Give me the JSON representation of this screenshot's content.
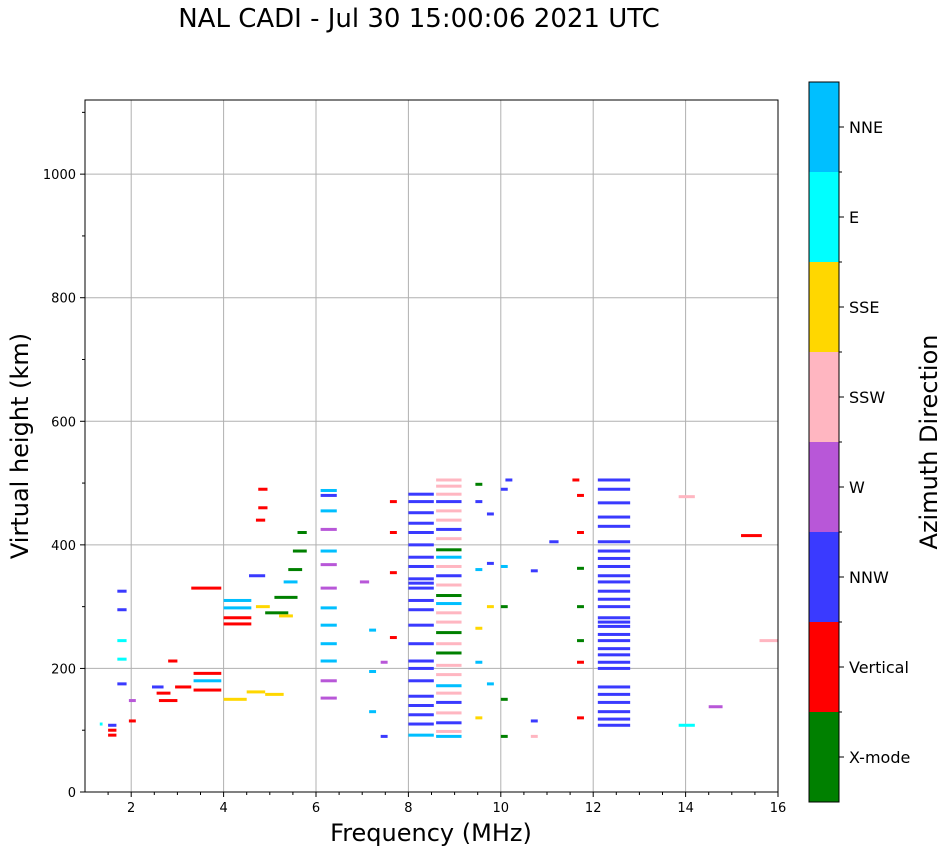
{
  "title": "NAL CADI - Jul 30 15:00:06 2021 UTC",
  "chart_data": {
    "type": "scatter",
    "title": "NAL CADI - Jul 30 15:00:06 2021 UTC",
    "xlabel": "Frequency (MHz)",
    "ylabel": "Virtual height (km)",
    "xlim": [
      1,
      16
    ],
    "ylim": [
      0,
      1120
    ],
    "xticks": [
      2,
      4,
      6,
      8,
      10,
      12,
      14,
      16
    ],
    "yticks": [
      0,
      200,
      400,
      600,
      800,
      1000
    ],
    "grid": true,
    "colorbar": {
      "label": "Azimuth Direction",
      "categories": [
        {
          "name": "X-mode",
          "color": "#008000"
        },
        {
          "name": "Vertical",
          "color": "#ff0000"
        },
        {
          "name": "NNW",
          "color": "#3a3aff"
        },
        {
          "name": "W",
          "color": "#b857d8"
        },
        {
          "name": "SSW",
          "color": "#ffb6c1"
        },
        {
          "name": "SSE",
          "color": "#ffd700"
        },
        {
          "name": "E",
          "color": "#00ffff"
        },
        {
          "name": "NNE",
          "color": "#00bfff"
        }
      ]
    },
    "segments": [
      {
        "f0": 1.32,
        "f1": 1.38,
        "h": 110,
        "c": "E"
      },
      {
        "f0": 1.5,
        "f1": 1.68,
        "h": 92,
        "c": "Vertical"
      },
      {
        "f0": 1.5,
        "f1": 1.68,
        "h": 100,
        "c": "Vertical"
      },
      {
        "f0": 1.5,
        "f1": 1.68,
        "h": 108,
        "c": "NNW"
      },
      {
        "f0": 1.7,
        "f1": 1.9,
        "h": 175,
        "c": "NNW"
      },
      {
        "f0": 1.7,
        "f1": 1.9,
        "h": 215,
        "c": "E"
      },
      {
        "f0": 1.7,
        "f1": 1.9,
        "h": 245,
        "c": "E"
      },
      {
        "f0": 1.7,
        "f1": 1.9,
        "h": 295,
        "c": "NNW"
      },
      {
        "f0": 1.7,
        "f1": 1.9,
        "h": 325,
        "c": "NNW"
      },
      {
        "f0": 1.95,
        "f1": 2.1,
        "h": 115,
        "c": "Vertical"
      },
      {
        "f0": 1.95,
        "f1": 2.1,
        "h": 148,
        "c": "W"
      },
      {
        "f0": 2.45,
        "f1": 2.7,
        "h": 170,
        "c": "NNW"
      },
      {
        "f0": 2.55,
        "f1": 2.85,
        "h": 160,
        "c": "Vertical"
      },
      {
        "f0": 2.6,
        "f1": 3.0,
        "h": 148,
        "c": "Vertical"
      },
      {
        "f0": 2.8,
        "f1": 3.0,
        "h": 212,
        "c": "Vertical"
      },
      {
        "f0": 2.95,
        "f1": 3.3,
        "h": 170,
        "c": "Vertical"
      },
      {
        "f0": 3.35,
        "f1": 3.95,
        "h": 165,
        "c": "Vertical"
      },
      {
        "f0": 3.35,
        "f1": 3.95,
        "h": 180,
        "c": "NNE"
      },
      {
        "f0": 3.35,
        "f1": 3.95,
        "h": 192,
        "c": "Vertical"
      },
      {
        "f0": 3.3,
        "f1": 3.95,
        "h": 330,
        "c": "Vertical"
      },
      {
        "f0": 4.0,
        "f1": 4.5,
        "h": 150,
        "c": "SSE"
      },
      {
        "f0": 4.5,
        "f1": 4.9,
        "h": 162,
        "c": "SSE"
      },
      {
        "f0": 4.9,
        "f1": 5.3,
        "h": 158,
        "c": "SSE"
      },
      {
        "f0": 4.0,
        "f1": 4.6,
        "h": 272,
        "c": "Vertical"
      },
      {
        "f0": 4.0,
        "f1": 4.6,
        "h": 282,
        "c": "Vertical"
      },
      {
        "f0": 4.0,
        "f1": 4.6,
        "h": 298,
        "c": "NNE"
      },
      {
        "f0": 4.0,
        "f1": 4.6,
        "h": 310,
        "c": "NNE"
      },
      {
        "f0": 4.55,
        "f1": 4.9,
        "h": 350,
        "c": "NNW"
      },
      {
        "f0": 4.7,
        "f1": 5.0,
        "h": 300,
        "c": "SSE"
      },
      {
        "f0": 4.9,
        "f1": 5.4,
        "h": 290,
        "c": "X-mode"
      },
      {
        "f0": 5.1,
        "f1": 5.6,
        "h": 315,
        "c": "X-mode"
      },
      {
        "f0": 5.2,
        "f1": 5.5,
        "h": 285,
        "c": "SSE"
      },
      {
        "f0": 5.3,
        "f1": 5.6,
        "h": 340,
        "c": "NNE"
      },
      {
        "f0": 5.4,
        "f1": 5.7,
        "h": 360,
        "c": "X-mode"
      },
      {
        "f0": 5.5,
        "f1": 5.8,
        "h": 390,
        "c": "X-mode"
      },
      {
        "f0": 5.6,
        "f1": 5.8,
        "h": 420,
        "c": "X-mode"
      },
      {
        "f0": 4.75,
        "f1": 4.95,
        "h": 490,
        "c": "Vertical"
      },
      {
        "f0": 4.7,
        "f1": 4.9,
        "h": 440,
        "c": "Vertical"
      },
      {
        "f0": 4.75,
        "f1": 4.95,
        "h": 460,
        "c": "Vertical"
      },
      {
        "f0": 6.1,
        "f1": 6.45,
        "h": 488,
        "c": "NNE"
      },
      {
        "f0": 6.1,
        "f1": 6.45,
        "h": 480,
        "c": "NNW"
      },
      {
        "f0": 6.1,
        "f1": 6.45,
        "h": 455,
        "c": "NNE"
      },
      {
        "f0": 6.1,
        "f1": 6.45,
        "h": 425,
        "c": "W"
      },
      {
        "f0": 6.1,
        "f1": 6.45,
        "h": 390,
        "c": "NNE"
      },
      {
        "f0": 6.1,
        "f1": 6.45,
        "h": 368,
        "c": "W"
      },
      {
        "f0": 6.1,
        "f1": 6.45,
        "h": 330,
        "c": "W"
      },
      {
        "f0": 6.1,
        "f1": 6.45,
        "h": 298,
        "c": "NNE"
      },
      {
        "f0": 6.1,
        "f1": 6.45,
        "h": 270,
        "c": "NNE"
      },
      {
        "f0": 6.1,
        "f1": 6.45,
        "h": 240,
        "c": "NNE"
      },
      {
        "f0": 6.1,
        "f1": 6.45,
        "h": 212,
        "c": "NNE"
      },
      {
        "f0": 6.1,
        "f1": 6.45,
        "h": 180,
        "c": "W"
      },
      {
        "f0": 6.1,
        "f1": 6.45,
        "h": 152,
        "c": "W"
      },
      {
        "f0": 6.95,
        "f1": 7.15,
        "h": 340,
        "c": "W"
      },
      {
        "f0": 7.15,
        "f1": 7.3,
        "h": 262,
        "c": "NNE"
      },
      {
        "f0": 7.15,
        "f1": 7.3,
        "h": 195,
        "c": "NNE"
      },
      {
        "f0": 7.15,
        "f1": 7.3,
        "h": 130,
        "c": "NNE"
      },
      {
        "f0": 7.4,
        "f1": 7.55,
        "h": 210,
        "c": "W"
      },
      {
        "f0": 7.4,
        "f1": 7.55,
        "h": 90,
        "c": "NNW"
      },
      {
        "f0": 7.6,
        "f1": 7.75,
        "h": 470,
        "c": "Vertical"
      },
      {
        "f0": 7.6,
        "f1": 7.75,
        "h": 420,
        "c": "Vertical"
      },
      {
        "f0": 7.6,
        "f1": 7.75,
        "h": 355,
        "c": "Vertical"
      },
      {
        "f0": 7.6,
        "f1": 7.75,
        "h": 250,
        "c": "Vertical"
      },
      {
        "f0": 8.0,
        "f1": 8.55,
        "h": 482,
        "c": "NNW"
      },
      {
        "f0": 8.0,
        "f1": 8.55,
        "h": 470,
        "c": "NNW"
      },
      {
        "f0": 8.0,
        "f1": 8.55,
        "h": 452,
        "c": "NNW"
      },
      {
        "f0": 8.0,
        "f1": 8.55,
        "h": 435,
        "c": "NNW"
      },
      {
        "f0": 8.0,
        "f1": 8.55,
        "h": 420,
        "c": "NNW"
      },
      {
        "f0": 8.0,
        "f1": 8.55,
        "h": 400,
        "c": "NNW"
      },
      {
        "f0": 8.0,
        "f1": 8.55,
        "h": 380,
        "c": "NNW"
      },
      {
        "f0": 8.0,
        "f1": 8.55,
        "h": 365,
        "c": "NNW"
      },
      {
        "f0": 8.0,
        "f1": 8.55,
        "h": 345,
        "c": "NNW"
      },
      {
        "f0": 8.0,
        "f1": 8.55,
        "h": 338,
        "c": "NNW"
      },
      {
        "f0": 8.0,
        "f1": 8.55,
        "h": 330,
        "c": "NNW"
      },
      {
        "f0": 8.0,
        "f1": 8.55,
        "h": 310,
        "c": "NNW"
      },
      {
        "f0": 8.0,
        "f1": 8.55,
        "h": 295,
        "c": "NNW"
      },
      {
        "f0": 8.0,
        "f1": 8.55,
        "h": 270,
        "c": "NNW"
      },
      {
        "f0": 8.0,
        "f1": 8.55,
        "h": 240,
        "c": "NNW"
      },
      {
        "f0": 8.0,
        "f1": 8.55,
        "h": 212,
        "c": "NNW"
      },
      {
        "f0": 8.0,
        "f1": 8.55,
        "h": 200,
        "c": "NNW"
      },
      {
        "f0": 8.0,
        "f1": 8.55,
        "h": 180,
        "c": "NNW"
      },
      {
        "f0": 8.0,
        "f1": 8.55,
        "h": 155,
        "c": "NNW"
      },
      {
        "f0": 8.0,
        "f1": 8.55,
        "h": 140,
        "c": "NNW"
      },
      {
        "f0": 8.0,
        "f1": 8.55,
        "h": 125,
        "c": "NNW"
      },
      {
        "f0": 8.0,
        "f1": 8.55,
        "h": 110,
        "c": "NNW"
      },
      {
        "f0": 8.0,
        "f1": 8.55,
        "h": 92,
        "c": "NNE"
      },
      {
        "f0": 8.6,
        "f1": 9.15,
        "h": 505,
        "c": "SSW"
      },
      {
        "f0": 8.6,
        "f1": 9.15,
        "h": 495,
        "c": "SSW"
      },
      {
        "f0": 8.6,
        "f1": 9.15,
        "h": 482,
        "c": "SSW"
      },
      {
        "f0": 8.6,
        "f1": 9.15,
        "h": 470,
        "c": "NNW"
      },
      {
        "f0": 8.6,
        "f1": 9.15,
        "h": 455,
        "c": "SSW"
      },
      {
        "f0": 8.6,
        "f1": 9.15,
        "h": 440,
        "c": "SSW"
      },
      {
        "f0": 8.6,
        "f1": 9.15,
        "h": 425,
        "c": "NNW"
      },
      {
        "f0": 8.6,
        "f1": 9.15,
        "h": 410,
        "c": "SSW"
      },
      {
        "f0": 8.6,
        "f1": 9.15,
        "h": 392,
        "c": "X-mode"
      },
      {
        "f0": 8.6,
        "f1": 9.15,
        "h": 380,
        "c": "NNE"
      },
      {
        "f0": 8.6,
        "f1": 9.15,
        "h": 365,
        "c": "SSW"
      },
      {
        "f0": 8.6,
        "f1": 9.15,
        "h": 350,
        "c": "NNW"
      },
      {
        "f0": 8.6,
        "f1": 9.15,
        "h": 335,
        "c": "SSW"
      },
      {
        "f0": 8.6,
        "f1": 9.15,
        "h": 318,
        "c": "X-mode"
      },
      {
        "f0": 8.6,
        "f1": 9.15,
        "h": 305,
        "c": "NNE"
      },
      {
        "f0": 8.6,
        "f1": 9.15,
        "h": 290,
        "c": "SSW"
      },
      {
        "f0": 8.6,
        "f1": 9.15,
        "h": 275,
        "c": "SSW"
      },
      {
        "f0": 8.6,
        "f1": 9.15,
        "h": 258,
        "c": "X-mode"
      },
      {
        "f0": 8.6,
        "f1": 9.15,
        "h": 240,
        "c": "SSW"
      },
      {
        "f0": 8.6,
        "f1": 9.15,
        "h": 225,
        "c": "X-mode"
      },
      {
        "f0": 8.6,
        "f1": 9.15,
        "h": 205,
        "c": "SSW"
      },
      {
        "f0": 8.6,
        "f1": 9.15,
        "h": 190,
        "c": "SSW"
      },
      {
        "f0": 8.6,
        "f1": 9.15,
        "h": 172,
        "c": "NNE"
      },
      {
        "f0": 8.6,
        "f1": 9.15,
        "h": 160,
        "c": "SSW"
      },
      {
        "f0": 8.6,
        "f1": 9.15,
        "h": 145,
        "c": "NNW"
      },
      {
        "f0": 8.6,
        "f1": 9.15,
        "h": 128,
        "c": "SSW"
      },
      {
        "f0": 8.6,
        "f1": 9.15,
        "h": 112,
        "c": "NNW"
      },
      {
        "f0": 8.6,
        "f1": 9.15,
        "h": 98,
        "c": "SSW"
      },
      {
        "f0": 8.6,
        "f1": 9.15,
        "h": 90,
        "c": "NNE"
      },
      {
        "f0": 9.45,
        "f1": 9.6,
        "h": 498,
        "c": "X-mode"
      },
      {
        "f0": 9.45,
        "f1": 9.6,
        "h": 470,
        "c": "NNW"
      },
      {
        "f0": 9.45,
        "f1": 9.6,
        "h": 360,
        "c": "NNE"
      },
      {
        "f0": 9.45,
        "f1": 9.6,
        "h": 265,
        "c": "SSE"
      },
      {
        "f0": 9.45,
        "f1": 9.6,
        "h": 210,
        "c": "NNE"
      },
      {
        "f0": 9.45,
        "f1": 9.6,
        "h": 120,
        "c": "SSE"
      },
      {
        "f0": 9.7,
        "f1": 9.85,
        "h": 450,
        "c": "NNW"
      },
      {
        "f0": 9.7,
        "f1": 9.85,
        "h": 370,
        "c": "NNW"
      },
      {
        "f0": 9.7,
        "f1": 9.85,
        "h": 300,
        "c": "SSE"
      },
      {
        "f0": 9.7,
        "f1": 9.85,
        "h": 175,
        "c": "NNE"
      },
      {
        "f0": 10.0,
        "f1": 10.15,
        "h": 490,
        "c": "NNW"
      },
      {
        "f0": 10.0,
        "f1": 10.15,
        "h": 365,
        "c": "NNE"
      },
      {
        "f0": 10.0,
        "f1": 10.15,
        "h": 300,
        "c": "X-mode"
      },
      {
        "f0": 10.0,
        "f1": 10.15,
        "h": 150,
        "c": "X-mode"
      },
      {
        "f0": 10.0,
        "f1": 10.15,
        "h": 90,
        "c": "X-mode"
      },
      {
        "f0": 10.1,
        "f1": 10.25,
        "h": 505,
        "c": "NNW"
      },
      {
        "f0": 10.65,
        "f1": 10.8,
        "h": 358,
        "c": "NNW"
      },
      {
        "f0": 10.65,
        "f1": 10.8,
        "h": 115,
        "c": "NNW"
      },
      {
        "f0": 10.65,
        "f1": 10.8,
        "h": 90,
        "c": "SSW"
      },
      {
        "f0": 11.05,
        "f1": 11.25,
        "h": 405,
        "c": "NNW"
      },
      {
        "f0": 11.55,
        "f1": 11.7,
        "h": 505,
        "c": "Vertical"
      },
      {
        "f0": 11.65,
        "f1": 11.8,
        "h": 480,
        "c": "Vertical"
      },
      {
        "f0": 11.65,
        "f1": 11.8,
        "h": 420,
        "c": "Vertical"
      },
      {
        "f0": 11.65,
        "f1": 11.8,
        "h": 362,
        "c": "X-mode"
      },
      {
        "f0": 11.65,
        "f1": 11.8,
        "h": 300,
        "c": "X-mode"
      },
      {
        "f0": 11.65,
        "f1": 11.8,
        "h": 245,
        "c": "X-mode"
      },
      {
        "f0": 11.65,
        "f1": 11.8,
        "h": 210,
        "c": "Vertical"
      },
      {
        "f0": 11.65,
        "f1": 11.8,
        "h": 120,
        "c": "Vertical"
      },
      {
        "f0": 12.1,
        "f1": 12.8,
        "h": 505,
        "c": "NNW"
      },
      {
        "f0": 12.1,
        "f1": 12.8,
        "h": 490,
        "c": "NNW"
      },
      {
        "f0": 12.1,
        "f1": 12.8,
        "h": 468,
        "c": "NNW"
      },
      {
        "f0": 12.1,
        "f1": 12.8,
        "h": 445,
        "c": "NNW"
      },
      {
        "f0": 12.1,
        "f1": 12.8,
        "h": 430,
        "c": "NNW"
      },
      {
        "f0": 12.1,
        "f1": 12.8,
        "h": 405,
        "c": "NNW"
      },
      {
        "f0": 12.1,
        "f1": 12.8,
        "h": 390,
        "c": "NNW"
      },
      {
        "f0": 12.1,
        "f1": 12.8,
        "h": 378,
        "c": "NNW"
      },
      {
        "f0": 12.1,
        "f1": 12.8,
        "h": 365,
        "c": "NNW"
      },
      {
        "f0": 12.1,
        "f1": 12.8,
        "h": 350,
        "c": "NNW"
      },
      {
        "f0": 12.1,
        "f1": 12.8,
        "h": 340,
        "c": "NNW"
      },
      {
        "f0": 12.1,
        "f1": 12.8,
        "h": 325,
        "c": "NNW"
      },
      {
        "f0": 12.1,
        "f1": 12.8,
        "h": 312,
        "c": "NNW"
      },
      {
        "f0": 12.1,
        "f1": 12.8,
        "h": 300,
        "c": "NNW"
      },
      {
        "f0": 12.1,
        "f1": 12.8,
        "h": 282,
        "c": "NNW"
      },
      {
        "f0": 12.1,
        "f1": 12.8,
        "h": 275,
        "c": "NNW"
      },
      {
        "f0": 12.1,
        "f1": 12.8,
        "h": 268,
        "c": "NNW"
      },
      {
        "f0": 12.1,
        "f1": 12.8,
        "h": 255,
        "c": "NNW"
      },
      {
        "f0": 12.1,
        "f1": 12.8,
        "h": 245,
        "c": "NNW"
      },
      {
        "f0": 12.1,
        "f1": 12.8,
        "h": 232,
        "c": "NNW"
      },
      {
        "f0": 12.1,
        "f1": 12.8,
        "h": 222,
        "c": "NNW"
      },
      {
        "f0": 12.1,
        "f1": 12.8,
        "h": 210,
        "c": "NNW"
      },
      {
        "f0": 12.1,
        "f1": 12.8,
        "h": 200,
        "c": "NNW"
      },
      {
        "f0": 12.1,
        "f1": 12.8,
        "h": 170,
        "c": "NNW"
      },
      {
        "f0": 12.1,
        "f1": 12.8,
        "h": 158,
        "c": "NNW"
      },
      {
        "f0": 12.1,
        "f1": 12.8,
        "h": 145,
        "c": "NNW"
      },
      {
        "f0": 12.1,
        "f1": 12.8,
        "h": 130,
        "c": "NNW"
      },
      {
        "f0": 12.1,
        "f1": 12.8,
        "h": 118,
        "c": "NNW"
      },
      {
        "f0": 12.1,
        "f1": 12.8,
        "h": 108,
        "c": "NNW"
      },
      {
        "f0": 13.85,
        "f1": 14.2,
        "h": 478,
        "c": "SSW"
      },
      {
        "f0": 13.85,
        "f1": 14.2,
        "h": 108,
        "c": "E"
      },
      {
        "f0": 14.5,
        "f1": 14.8,
        "h": 138,
        "c": "W"
      },
      {
        "f0": 15.2,
        "f1": 15.65,
        "h": 415,
        "c": "Vertical"
      },
      {
        "f0": 15.6,
        "f1": 16.0,
        "h": 245,
        "c": "SSW"
      }
    ]
  }
}
